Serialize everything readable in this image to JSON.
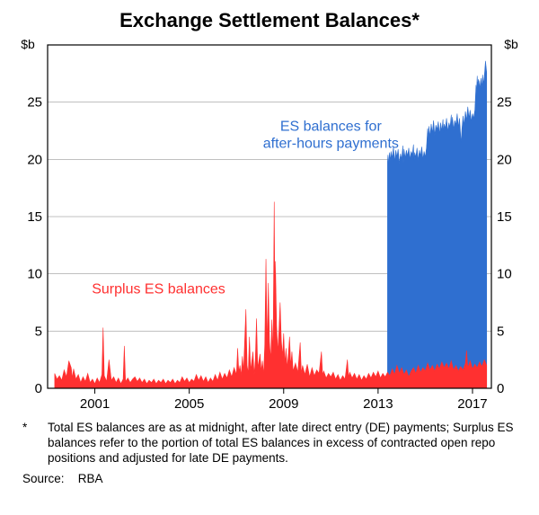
{
  "title": "Exchange Settlement Balances*",
  "chart": {
    "type": "area",
    "background_color": "#ffffff",
    "plot_border_color": "#000000",
    "grid_color": "#808080",
    "grid_width": 0.5,
    "y_unit_label": "$b",
    "y_unit_fontsize": 14,
    "ylim": [
      0,
      30
    ],
    "yticks": [
      0,
      5,
      10,
      15,
      20,
      25
    ],
    "x_start_year": 1999,
    "x_end_year": 2017.8,
    "x_tick_years": [
      2001,
      2005,
      2009,
      2013,
      2017
    ],
    "tick_label_fontsize": 15,
    "legend_labels": {
      "blue": "ES balances for\nafter-hours payments",
      "red": "Surplus ES balances"
    },
    "legend_positions": {
      "blue": {
        "x_year": 2011.0,
        "y_val": 22.5
      },
      "red": {
        "x_year": 2003.7,
        "y_val": 8.3
      }
    },
    "legend_fontsize": 16,
    "series_colors": {
      "blue_fill": "#2f6fd0",
      "blue_stroke": "#2f6fd0",
      "red_fill": "#ff3030",
      "red_stroke": "#ff3030"
    },
    "series_blue": [
      [
        2013.4,
        19.8
      ],
      [
        2013.42,
        20.4
      ],
      [
        2013.45,
        19.5
      ],
      [
        2013.48,
        20.6
      ],
      [
        2013.5,
        19.9
      ],
      [
        2013.55,
        20.7
      ],
      [
        2013.6,
        20.1
      ],
      [
        2013.65,
        21.1
      ],
      [
        2013.7,
        19.8
      ],
      [
        2013.75,
        20.8
      ],
      [
        2013.8,
        20.2
      ],
      [
        2013.85,
        20.9
      ],
      [
        2013.9,
        19.6
      ],
      [
        2013.95,
        20.5
      ],
      [
        2014.0,
        20.0
      ],
      [
        2014.05,
        21.2
      ],
      [
        2014.07,
        19.7
      ],
      [
        2014.1,
        20.9
      ],
      [
        2014.15,
        20.1
      ],
      [
        2014.2,
        20.8
      ],
      [
        2014.25,
        20.3
      ],
      [
        2014.3,
        21.0
      ],
      [
        2014.35,
        20.0
      ],
      [
        2014.4,
        20.7
      ],
      [
        2014.45,
        20.4
      ],
      [
        2014.5,
        21.3
      ],
      [
        2014.52,
        19.8
      ],
      [
        2014.55,
        20.6
      ],
      [
        2014.6,
        20.2
      ],
      [
        2014.65,
        21.0
      ],
      [
        2014.7,
        19.9
      ],
      [
        2014.75,
        20.8
      ],
      [
        2014.8,
        20.3
      ],
      [
        2014.85,
        21.1
      ],
      [
        2014.9,
        20.0
      ],
      [
        2014.95,
        20.7
      ],
      [
        2015.0,
        20.2
      ],
      [
        2015.05,
        21.0
      ],
      [
        2015.1,
        22.7
      ],
      [
        2015.12,
        21.8
      ],
      [
        2015.15,
        22.9
      ],
      [
        2015.2,
        22.0
      ],
      [
        2015.25,
        23.1
      ],
      [
        2015.3,
        22.3
      ],
      [
        2015.35,
        23.4
      ],
      [
        2015.4,
        22.1
      ],
      [
        2015.45,
        23.0
      ],
      [
        2015.5,
        22.6
      ],
      [
        2015.55,
        23.3
      ],
      [
        2015.6,
        22.2
      ],
      [
        2015.65,
        23.2
      ],
      [
        2015.7,
        22.5
      ],
      [
        2015.75,
        23.5
      ],
      [
        2015.77,
        22.3
      ],
      [
        2015.8,
        23.1
      ],
      [
        2015.85,
        22.7
      ],
      [
        2015.9,
        23.6
      ],
      [
        2015.95,
        22.4
      ],
      [
        2016.0,
        23.2
      ],
      [
        2016.05,
        22.8
      ],
      [
        2016.1,
        23.9
      ],
      [
        2016.12,
        22.9
      ],
      [
        2016.15,
        23.7
      ],
      [
        2016.2,
        22.6
      ],
      [
        2016.25,
        23.4
      ],
      [
        2016.3,
        23.0
      ],
      [
        2016.35,
        24.0
      ],
      [
        2016.4,
        22.8
      ],
      [
        2016.45,
        23.6
      ],
      [
        2016.5,
        22.0
      ],
      [
        2016.52,
        21.4
      ],
      [
        2016.55,
        22.6
      ],
      [
        2016.6,
        23.8
      ],
      [
        2016.65,
        23.0
      ],
      [
        2016.7,
        24.2
      ],
      [
        2016.75,
        23.4
      ],
      [
        2016.8,
        24.6
      ],
      [
        2016.85,
        23.6
      ],
      [
        2016.9,
        24.3
      ],
      [
        2016.95,
        23.3
      ],
      [
        2017.0,
        24.0
      ],
      [
        2017.05,
        23.6
      ],
      [
        2017.1,
        24.3
      ],
      [
        2017.15,
        26.5
      ],
      [
        2017.17,
        25.8
      ],
      [
        2017.2,
        27.3
      ],
      [
        2017.22,
        26.4
      ],
      [
        2017.25,
        27.0
      ],
      [
        2017.28,
        26.1
      ],
      [
        2017.3,
        26.9
      ],
      [
        2017.33,
        26.0
      ],
      [
        2017.36,
        27.1
      ],
      [
        2017.4,
        26.3
      ],
      [
        2017.43,
        27.4
      ],
      [
        2017.46,
        26.6
      ],
      [
        2017.5,
        27.2
      ],
      [
        2017.55,
        28.6
      ],
      [
        2017.6,
        27.6
      ]
    ],
    "series_red": [
      [
        1999.3,
        1.3
      ],
      [
        1999.4,
        0.8
      ],
      [
        1999.5,
        1.1
      ],
      [
        1999.6,
        0.7
      ],
      [
        1999.7,
        1.6
      ],
      [
        1999.8,
        1.0
      ],
      [
        1999.9,
        2.4
      ],
      [
        2000.0,
        1.8
      ],
      [
        2000.05,
        0.9
      ],
      [
        2000.1,
        1.7
      ],
      [
        2000.2,
        0.8
      ],
      [
        2000.3,
        1.2
      ],
      [
        2000.4,
        0.5
      ],
      [
        2000.5,
        1.0
      ],
      [
        2000.6,
        0.6
      ],
      [
        2000.7,
        1.3
      ],
      [
        2000.8,
        0.5
      ],
      [
        2000.9,
        0.8
      ],
      [
        2001.0,
        0.4
      ],
      [
        2001.1,
        0.9
      ],
      [
        2001.2,
        0.5
      ],
      [
        2001.3,
        1.2
      ],
      [
        2001.35,
        5.3
      ],
      [
        2001.4,
        1.1
      ],
      [
        2001.5,
        0.6
      ],
      [
        2001.6,
        2.5
      ],
      [
        2001.7,
        0.7
      ],
      [
        2001.8,
        1.0
      ],
      [
        2001.9,
        0.5
      ],
      [
        2002.0,
        0.9
      ],
      [
        2002.1,
        0.4
      ],
      [
        2002.2,
        0.8
      ],
      [
        2002.25,
        3.7
      ],
      [
        2002.3,
        0.6
      ],
      [
        2002.4,
        0.9
      ],
      [
        2002.5,
        0.5
      ],
      [
        2002.6,
        0.8
      ],
      [
        2002.7,
        1.0
      ],
      [
        2002.8,
        0.6
      ],
      [
        2002.9,
        0.9
      ],
      [
        2003.0,
        0.5
      ],
      [
        2003.1,
        0.8
      ],
      [
        2003.2,
        0.4
      ],
      [
        2003.3,
        0.7
      ],
      [
        2003.4,
        0.5
      ],
      [
        2003.5,
        0.8
      ],
      [
        2003.6,
        0.4
      ],
      [
        2003.7,
        0.7
      ],
      [
        2003.8,
        0.5
      ],
      [
        2003.9,
        0.8
      ],
      [
        2004.0,
        0.4
      ],
      [
        2004.1,
        0.7
      ],
      [
        2004.2,
        0.5
      ],
      [
        2004.3,
        0.8
      ],
      [
        2004.4,
        0.4
      ],
      [
        2004.5,
        0.7
      ],
      [
        2004.6,
        0.5
      ],
      [
        2004.7,
        1.0
      ],
      [
        2004.8,
        0.6
      ],
      [
        2004.9,
        0.9
      ],
      [
        2005.0,
        0.5
      ],
      [
        2005.1,
        0.8
      ],
      [
        2005.2,
        0.6
      ],
      [
        2005.3,
        1.2
      ],
      [
        2005.4,
        0.7
      ],
      [
        2005.5,
        1.1
      ],
      [
        2005.6,
        0.6
      ],
      [
        2005.7,
        1.0
      ],
      [
        2005.8,
        0.5
      ],
      [
        2005.9,
        0.9
      ],
      [
        2006.0,
        0.6
      ],
      [
        2006.1,
        1.2
      ],
      [
        2006.2,
        0.7
      ],
      [
        2006.3,
        1.4
      ],
      [
        2006.4,
        0.8
      ],
      [
        2006.5,
        1.3
      ],
      [
        2006.6,
        0.9
      ],
      [
        2006.7,
        1.6
      ],
      [
        2006.8,
        1.0
      ],
      [
        2006.9,
        1.8
      ],
      [
        2007.0,
        1.2
      ],
      [
        2007.05,
        3.5
      ],
      [
        2007.1,
        1.4
      ],
      [
        2007.15,
        2.0
      ],
      [
        2007.2,
        1.1
      ],
      [
        2007.25,
        2.8
      ],
      [
        2007.3,
        1.5
      ],
      [
        2007.4,
        6.9
      ],
      [
        2007.45,
        2.0
      ],
      [
        2007.5,
        1.3
      ],
      [
        2007.55,
        4.5
      ],
      [
        2007.6,
        1.6
      ],
      [
        2007.7,
        3.2
      ],
      [
        2007.75,
        1.2
      ],
      [
        2007.8,
        2.5
      ],
      [
        2007.85,
        6.1
      ],
      [
        2007.9,
        1.8
      ],
      [
        2008.0,
        3.0
      ],
      [
        2008.05,
        1.5
      ],
      [
        2008.1,
        2.4
      ],
      [
        2008.15,
        1.2
      ],
      [
        2008.2,
        3.8
      ],
      [
        2008.25,
        11.3
      ],
      [
        2008.3,
        3.5
      ],
      [
        2008.35,
        9.2
      ],
      [
        2008.4,
        4.0
      ],
      [
        2008.45,
        2.5
      ],
      [
        2008.5,
        6.0
      ],
      [
        2008.55,
        3.0
      ],
      [
        2008.6,
        16.3
      ],
      [
        2008.63,
        7.0
      ],
      [
        2008.65,
        11.1
      ],
      [
        2008.7,
        5.5
      ],
      [
        2008.75,
        3.2
      ],
      [
        2008.8,
        5.0
      ],
      [
        2008.85,
        7.5
      ],
      [
        2008.9,
        4.2
      ],
      [
        2008.95,
        2.8
      ],
      [
        2009.0,
        4.8
      ],
      [
        2009.05,
        2.2
      ],
      [
        2009.1,
        3.5
      ],
      [
        2009.15,
        1.8
      ],
      [
        2009.2,
        3.0
      ],
      [
        2009.25,
        4.5
      ],
      [
        2009.3,
        2.0
      ],
      [
        2009.35,
        3.2
      ],
      [
        2009.4,
        1.5
      ],
      [
        2009.5,
        2.2
      ],
      [
        2009.6,
        1.4
      ],
      [
        2009.7,
        4.0
      ],
      [
        2009.75,
        1.3
      ],
      [
        2009.8,
        2.0
      ],
      [
        2009.9,
        1.2
      ],
      [
        2010.0,
        2.1
      ],
      [
        2010.1,
        1.0
      ],
      [
        2010.2,
        1.8
      ],
      [
        2010.3,
        1.1
      ],
      [
        2010.4,
        1.6
      ],
      [
        2010.5,
        1.3
      ],
      [
        2010.6,
        3.2
      ],
      [
        2010.65,
        1.2
      ],
      [
        2010.7,
        1.5
      ],
      [
        2010.8,
        0.9
      ],
      [
        2010.9,
        1.3
      ],
      [
        2011.0,
        1.0
      ],
      [
        2011.1,
        1.4
      ],
      [
        2011.2,
        0.8
      ],
      [
        2011.3,
        1.2
      ],
      [
        2011.4,
        0.7
      ],
      [
        2011.5,
        1.1
      ],
      [
        2011.6,
        0.8
      ],
      [
        2011.7,
        2.5
      ],
      [
        2011.75,
        1.0
      ],
      [
        2011.8,
        1.4
      ],
      [
        2011.9,
        0.9
      ],
      [
        2012.0,
        1.3
      ],
      [
        2012.1,
        0.8
      ],
      [
        2012.2,
        1.2
      ],
      [
        2012.3,
        0.7
      ],
      [
        2012.4,
        1.1
      ],
      [
        2012.5,
        0.8
      ],
      [
        2012.6,
        1.3
      ],
      [
        2012.7,
        0.9
      ],
      [
        2012.8,
        1.4
      ],
      [
        2012.9,
        1.0
      ],
      [
        2013.0,
        1.5
      ],
      [
        2013.1,
        0.9
      ],
      [
        2013.2,
        1.3
      ],
      [
        2013.3,
        1.0
      ],
      [
        2013.4,
        1.4
      ],
      [
        2013.5,
        1.1
      ],
      [
        2013.6,
        1.7
      ],
      [
        2013.7,
        1.2
      ],
      [
        2013.8,
        2.0
      ],
      [
        2013.9,
        1.3
      ],
      [
        2014.0,
        1.8
      ],
      [
        2014.1,
        1.2
      ],
      [
        2014.2,
        1.6
      ],
      [
        2014.3,
        1.0
      ],
      [
        2014.4,
        1.5
      ],
      [
        2014.5,
        1.8
      ],
      [
        2014.6,
        1.3
      ],
      [
        2014.7,
        2.0
      ],
      [
        2014.8,
        1.4
      ],
      [
        2014.9,
        1.8
      ],
      [
        2015.0,
        1.5
      ],
      [
        2015.1,
        2.2
      ],
      [
        2015.2,
        1.6
      ],
      [
        2015.3,
        2.0
      ],
      [
        2015.4,
        1.5
      ],
      [
        2015.5,
        2.1
      ],
      [
        2015.6,
        1.7
      ],
      [
        2015.7,
        2.3
      ],
      [
        2015.8,
        1.8
      ],
      [
        2015.9,
        2.2
      ],
      [
        2016.0,
        1.7
      ],
      [
        2016.1,
        2.4
      ],
      [
        2016.2,
        1.6
      ],
      [
        2016.3,
        2.0
      ],
      [
        2016.4,
        1.5
      ],
      [
        2016.5,
        1.9
      ],
      [
        2016.6,
        1.6
      ],
      [
        2016.7,
        2.2
      ],
      [
        2016.75,
        3.3
      ],
      [
        2016.8,
        1.8
      ],
      [
        2016.9,
        2.4
      ],
      [
        2017.0,
        1.7
      ],
      [
        2017.1,
        2.1
      ],
      [
        2017.2,
        1.8
      ],
      [
        2017.3,
        2.3
      ],
      [
        2017.4,
        1.9
      ],
      [
        2017.5,
        2.5
      ],
      [
        2017.6,
        2.0
      ]
    ]
  },
  "footnote": {
    "marker": "*",
    "text": "Total ES balances are as at midnight, after late direct entry (DE) payments; Surplus ES balances refer to the portion of total ES balances in excess of contracted open repo positions and adjusted for late DE payments."
  },
  "source": {
    "label": "Source:",
    "value": "RBA"
  }
}
